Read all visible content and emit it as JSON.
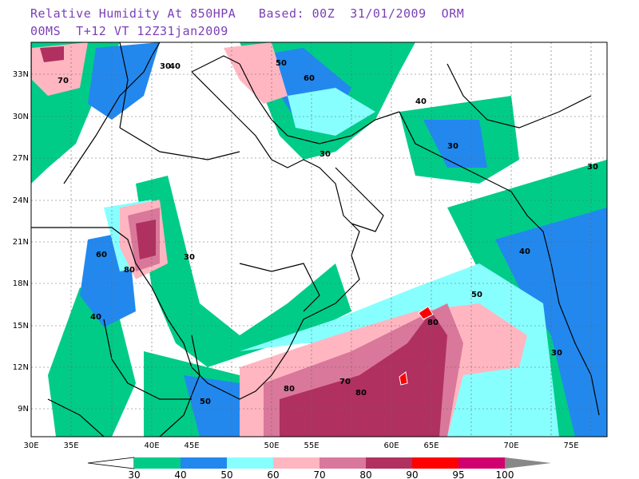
{
  "title_line1": "Relative Humidity At 850HPA   Based: 00Z  31/01/2009  ORM",
  "title_line2": "00MS  T+12 VT 12Z31jan2009",
  "lat_labels": [
    "33N",
    "30N",
    "27N",
    "24N",
    "21N",
    "18N",
    "15N",
    "12N",
    "9N"
  ],
  "lon_labels": [
    "30E",
    "35E",
    "40E",
    "45E",
    "50E",
    "55E",
    "60E",
    "65E",
    "70E",
    "75E"
  ],
  "colorbar": {
    "labels": [
      "30",
      "40",
      "50",
      "60",
      "70",
      "80",
      "90",
      "95",
      "100"
    ],
    "colors": [
      "#00cc88",
      "#2288ee",
      "#88ffff",
      "#ffb6c1",
      "#d9789a",
      "#b03060",
      "#ff0000",
      "#d0006f",
      "#888888"
    ]
  },
  "contour_labels": [
    "30",
    "40",
    "50",
    "60",
    "70",
    "80",
    "90"
  ]
}
